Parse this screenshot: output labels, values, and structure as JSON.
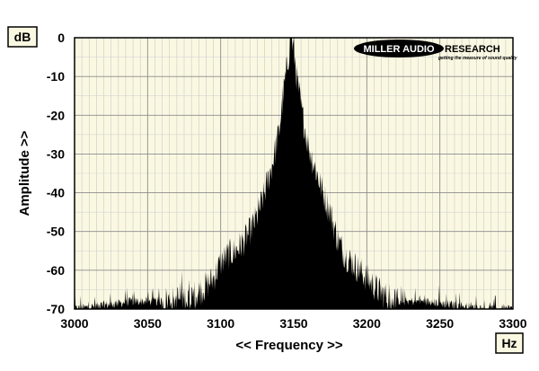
{
  "chart_data": {
    "type": "area",
    "title": "",
    "xlabel": "<< Frequency >>",
    "ylabel": "Amplitude >>",
    "x_unit": "Hz",
    "y_unit": "dB",
    "xlim": [
      3000,
      3300
    ],
    "ylim": [
      -70,
      0
    ],
    "x_ticks": [
      3000,
      3050,
      3100,
      3150,
      3200,
      3250,
      3300
    ],
    "y_ticks": [
      0,
      -10,
      -20,
      -30,
      -40,
      -50,
      -60,
      -70
    ],
    "x_tick_labels": [
      "3000",
      "3050",
      "3100",
      "3150",
      "3200",
      "3250",
      "3300"
    ],
    "y_tick_labels": [
      "0",
      "-10",
      "-20",
      "-30",
      "-40",
      "-50",
      "-60",
      "-70"
    ],
    "grid": true,
    "series": [
      {
        "x": [
          3000,
          3020,
          3040,
          3060,
          3080,
          3090,
          3095,
          3100,
          3105,
          3110,
          3115,
          3120,
          3125,
          3130,
          3135,
          3140,
          3143,
          3146,
          3148,
          3150,
          3152,
          3155,
          3160,
          3165,
          3170,
          3175,
          3180,
          3185,
          3190,
          3195,
          3200,
          3205,
          3210,
          3220,
          3240,
          3260,
          3280,
          3300
        ],
        "y": [
          -70,
          -69,
          -68,
          -68,
          -67,
          -64,
          -62,
          -58,
          -56,
          -55,
          -53,
          -50,
          -46,
          -40,
          -33,
          -24,
          -14,
          -6,
          0,
          -3,
          -10,
          -18,
          -28,
          -34,
          -40,
          -45,
          -52,
          -56,
          -58,
          -60,
          -62,
          -64,
          -66,
          -68,
          -68,
          -69,
          -70,
          -70
        ]
      }
    ]
  },
  "logo": {
    "name_left": "MILLER AUDIO",
    "name_right": "RESEARCH",
    "tagline": "getting the measure of sound quality"
  }
}
